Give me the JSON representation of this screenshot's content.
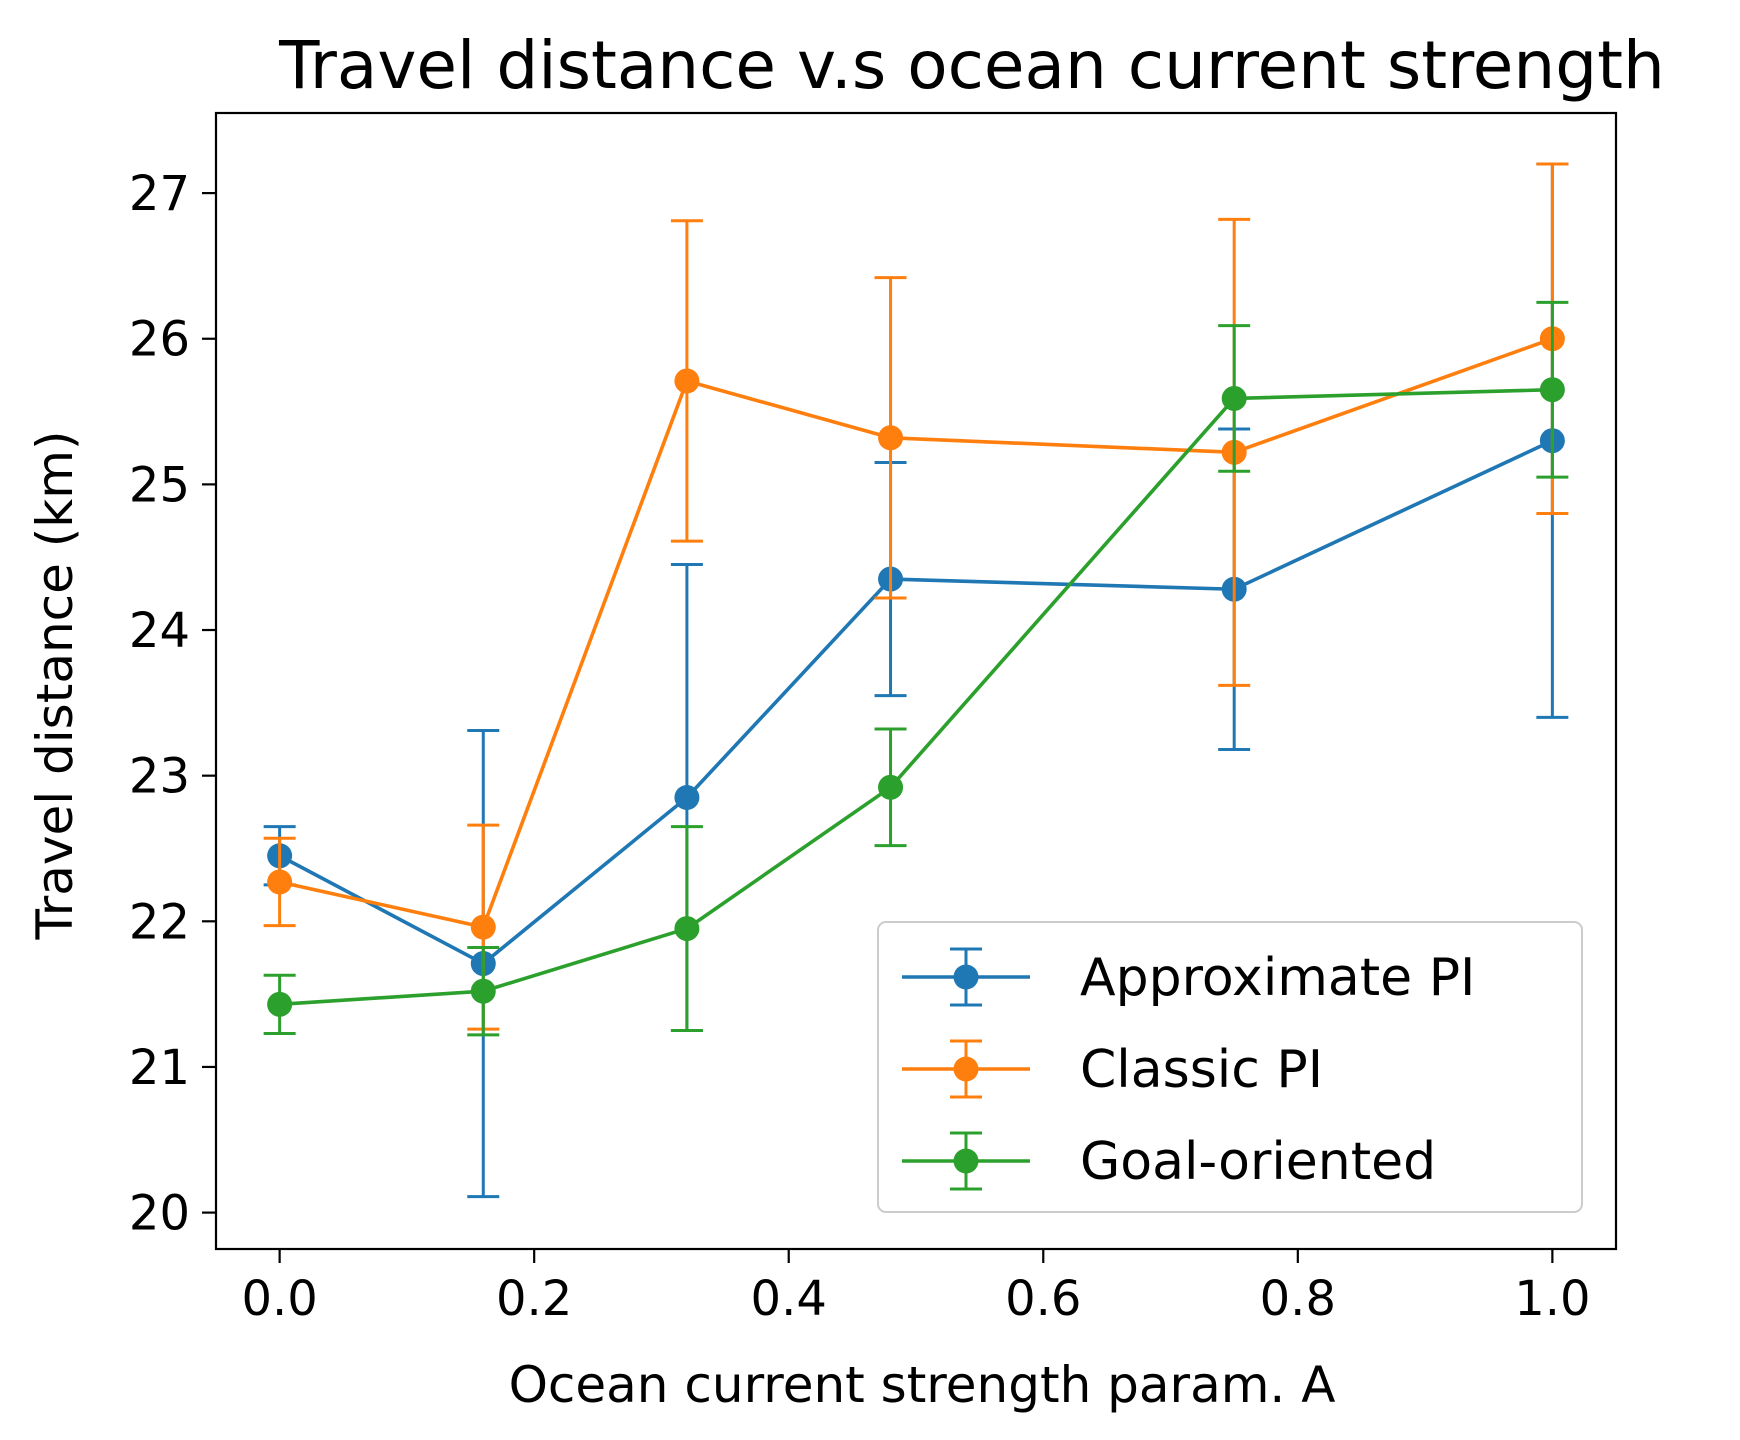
{
  "chart_data": {
    "type": "line",
    "title": "Travel distance v.s ocean current strength",
    "xlabel": "Ocean current strength param. A",
    "ylabel": "Travel distance (km)",
    "xlim": [
      -0.05,
      1.05
    ],
    "ylim": [
      19.75,
      27.55
    ],
    "xticks": [
      0.0,
      0.2,
      0.4,
      0.6,
      0.8,
      1.0
    ],
    "xtick_labels": [
      "0.0",
      "0.2",
      "0.4",
      "0.6",
      "0.8",
      "1.0"
    ],
    "yticks": [
      20,
      21,
      22,
      23,
      24,
      25,
      26,
      27
    ],
    "ytick_labels": [
      "20",
      "21",
      "22",
      "23",
      "24",
      "25",
      "26",
      "27"
    ],
    "x": [
      0.0,
      0.16,
      0.32,
      0.48,
      0.75,
      1.0
    ],
    "error_bars": true,
    "legend_position": "lower right",
    "series": [
      {
        "name": "Approximate PI",
        "color": "#1f77b4",
        "values": [
          22.45,
          21.71,
          22.85,
          24.35,
          24.28,
          25.3
        ],
        "errors": [
          0.2,
          1.6,
          1.6,
          0.8,
          1.1,
          1.9
        ]
      },
      {
        "name": "Classic PI",
        "color": "#ff7f0e",
        "values": [
          22.27,
          21.96,
          25.71,
          25.32,
          25.22,
          26.0
        ],
        "errors": [
          0.3,
          0.7,
          1.1,
          1.1,
          1.6,
          1.2
        ]
      },
      {
        "name": "Goal-oriented",
        "color": "#2ca02c",
        "values": [
          21.43,
          21.52,
          21.95,
          22.92,
          25.59,
          25.65
        ],
        "errors": [
          0.2,
          0.3,
          0.7,
          0.4,
          0.5,
          0.6
        ]
      }
    ]
  }
}
